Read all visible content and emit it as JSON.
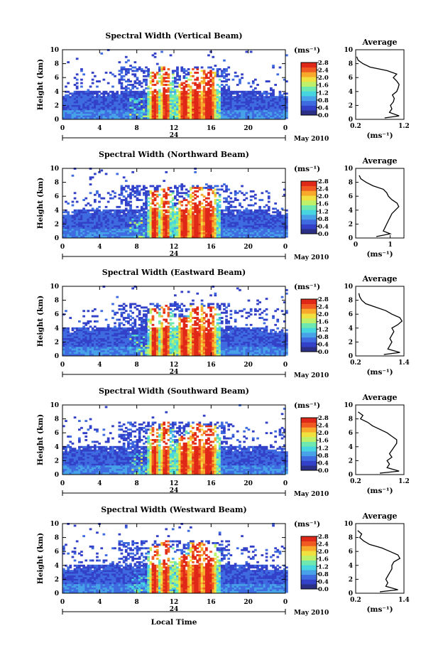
{
  "figure": {
    "xlabel": "Local Time",
    "colorbar_colors": [
      "#2b2f86",
      "#3341c9",
      "#3f6be0",
      "#47a2e8",
      "#47d6e0",
      "#6fe8b0",
      "#bff06a",
      "#f0e040",
      "#f8a82a",
      "#f05a22",
      "#e02818"
    ]
  },
  "chart_data": [
    {
      "type": "heatmap",
      "title": "Spectral Width (Vertical Beam)",
      "ylabel": "Height (km)",
      "xlim": [
        0,
        24
      ],
      "ylim": [
        0,
        10
      ],
      "xticks": [
        "0",
        "4",
        "8",
        "12",
        "16",
        "20",
        "0"
      ],
      "yticks": [
        "0",
        "2",
        "4",
        "6",
        "8",
        "10"
      ],
      "date_day": "24",
      "date_label": "May 2010",
      "colorbar": {
        "unit": "(ms⁻¹)",
        "ticks": [
          "0.0",
          "0.4",
          "0.8",
          "1.2",
          "1.6",
          "2.0",
          "2.4",
          "2.8"
        ],
        "range": [
          0,
          2.8
        ]
      },
      "profile": {
        "title": "Average",
        "xlabel": "(ms⁻¹)",
        "xticks": [
          "0.2",
          "1.2"
        ],
        "xlim": [
          0.2,
          1.2
        ],
        "yticks": [
          "0",
          "2",
          "4",
          "6",
          "8",
          "10"
        ],
        "points": [
          [
            0.8,
            0.2
          ],
          [
            1.1,
            0.5
          ],
          [
            0.9,
            1
          ],
          [
            0.95,
            1.5
          ],
          [
            0.92,
            2
          ],
          [
            0.98,
            2.5
          ],
          [
            1.0,
            3
          ],
          [
            0.96,
            3.5
          ],
          [
            1.05,
            4
          ],
          [
            1.08,
            4.5
          ],
          [
            1.1,
            5
          ],
          [
            1.05,
            5.5
          ],
          [
            0.98,
            6
          ],
          [
            1.05,
            6.5
          ],
          [
            0.85,
            7
          ],
          [
            0.5,
            7.5
          ],
          [
            0.35,
            8
          ],
          [
            0.25,
            8.5
          ],
          [
            0.22,
            9
          ]
        ]
      }
    },
    {
      "type": "heatmap",
      "title": "Spectral Width (Northward Beam)",
      "ylabel": "Height (km)",
      "xlim": [
        0,
        24
      ],
      "ylim": [
        0,
        10
      ],
      "xticks": [
        "0",
        "4",
        "8",
        "12",
        "16",
        "20",
        "0"
      ],
      "yticks": [
        "0",
        "2",
        "4",
        "6",
        "8",
        "10"
      ],
      "date_day": "24",
      "date_label": "May 2010",
      "colorbar": {
        "unit": "(ms⁻¹)",
        "ticks": [
          "0.0",
          "0.4",
          "0.8",
          "1.2",
          "1.6",
          "2.0",
          "2.4",
          "2.8"
        ],
        "range": [
          0,
          2.8
        ]
      },
      "profile": {
        "title": "Average",
        "xlabel": "(ms⁻¹)",
        "xticks": [
          "0",
          "1"
        ],
        "xlim": [
          0,
          1.4
        ],
        "yticks": [
          "0",
          "2",
          "4",
          "6",
          "8",
          "10"
        ],
        "points": [
          [
            0.6,
            0.2
          ],
          [
            1.0,
            0.6
          ],
          [
            0.8,
            1
          ],
          [
            0.85,
            1.5
          ],
          [
            0.9,
            2
          ],
          [
            0.95,
            2.5
          ],
          [
            1.0,
            3
          ],
          [
            1.05,
            3.5
          ],
          [
            1.15,
            4
          ],
          [
            1.25,
            4.5
          ],
          [
            1.2,
            5
          ],
          [
            1.05,
            5.5
          ],
          [
            0.95,
            6
          ],
          [
            0.9,
            6.5
          ],
          [
            0.8,
            7
          ],
          [
            0.5,
            7.5
          ],
          [
            0.3,
            8
          ],
          [
            0.15,
            8.5
          ],
          [
            0.1,
            9
          ]
        ]
      }
    },
    {
      "type": "heatmap",
      "title": "Spectral Width (Eastward Beam)",
      "ylabel": "Height (km)",
      "xlim": [
        0,
        24
      ],
      "ylim": [
        0,
        10
      ],
      "xticks": [
        "0",
        "4",
        "8",
        "12",
        "16",
        "20",
        "0"
      ],
      "yticks": [
        "0",
        "2",
        "4",
        "6",
        "8",
        "10"
      ],
      "date_day": "24",
      "date_label": "May 2010",
      "colorbar": {
        "unit": "(ms⁻¹)",
        "ticks": [
          "0.0",
          "0.4",
          "0.8",
          "1.2",
          "1.6",
          "2.0",
          "2.4",
          "2.8"
        ],
        "range": [
          0,
          2.8
        ]
      },
      "profile": {
        "title": "Average",
        "xlabel": "(ms⁻¹)",
        "xticks": [
          "0.2",
          "1.4"
        ],
        "xlim": [
          0.2,
          1.4
        ],
        "yticks": [
          "0",
          "2",
          "4",
          "6",
          "8",
          "10"
        ],
        "points": [
          [
            0.9,
            0.2
          ],
          [
            1.3,
            0.5
          ],
          [
            1.0,
            1
          ],
          [
            1.05,
            1.5
          ],
          [
            1.1,
            2
          ],
          [
            1.05,
            2.5
          ],
          [
            1.1,
            3
          ],
          [
            1.15,
            3.5
          ],
          [
            1.1,
            4
          ],
          [
            1.25,
            4.5
          ],
          [
            1.35,
            5
          ],
          [
            1.3,
            5.5
          ],
          [
            1.1,
            6
          ],
          [
            0.95,
            6.5
          ],
          [
            0.7,
            7
          ],
          [
            0.45,
            7.5
          ],
          [
            0.35,
            8
          ],
          [
            0.3,
            8.5
          ],
          [
            0.28,
            9
          ]
        ]
      }
    },
    {
      "type": "heatmap",
      "title": "Spectral Width (Southward Beam)",
      "ylabel": "Height (km)",
      "xlim": [
        0,
        24
      ],
      "ylim": [
        0,
        10
      ],
      "xticks": [
        "0",
        "4",
        "8",
        "12",
        "16",
        "20",
        "0"
      ],
      "yticks": [
        "0",
        "2",
        "4",
        "6",
        "8",
        "10"
      ],
      "date_day": "24",
      "date_label": "May 2010",
      "colorbar": {
        "unit": "(ms⁻¹)",
        "ticks": [
          "0.0",
          "0.4",
          "0.8",
          "1.2",
          "1.6",
          "2.0",
          "2.4",
          "2.8"
        ],
        "range": [
          0,
          2.8
        ]
      },
      "profile": {
        "title": "Average",
        "xlabel": "(ms⁻¹)",
        "xticks": [
          "0.2",
          "1.2"
        ],
        "xlim": [
          0.2,
          1.2
        ],
        "yticks": [
          "0",
          "2",
          "4",
          "6",
          "8",
          "10"
        ],
        "points": [
          [
            0.7,
            0.2
          ],
          [
            1.1,
            0.5
          ],
          [
            0.85,
            1
          ],
          [
            0.9,
            1.5
          ],
          [
            0.85,
            2
          ],
          [
            0.95,
            2.5
          ],
          [
            0.9,
            3
          ],
          [
            0.95,
            3.5
          ],
          [
            1.0,
            4
          ],
          [
            1.05,
            4.5
          ],
          [
            1.05,
            5
          ],
          [
            0.95,
            5.5
          ],
          [
            0.85,
            6
          ],
          [
            0.7,
            6.5
          ],
          [
            0.55,
            7
          ],
          [
            0.45,
            7.5
          ],
          [
            0.3,
            8
          ],
          [
            0.35,
            8.5
          ],
          [
            0.25,
            9
          ]
        ]
      }
    },
    {
      "type": "heatmap",
      "title": "Spectral Width (Westward Beam)",
      "ylabel": "Height (km)",
      "xlim": [
        0,
        24
      ],
      "ylim": [
        0,
        10
      ],
      "xticks": [
        "0",
        "4",
        "8",
        "12",
        "16",
        "20",
        "0"
      ],
      "yticks": [
        "0",
        "2",
        "4",
        "6",
        "8",
        "10"
      ],
      "date_day": "24",
      "date_label": "May 2010",
      "colorbar": {
        "unit": "(ms⁻¹)",
        "ticks": [
          "0.0",
          "0.4",
          "0.8",
          "1.2",
          "1.6",
          "2.0",
          "2.4",
          "2.8"
        ],
        "range": [
          0,
          2.8
        ]
      },
      "profile": {
        "title": "Average",
        "xlabel": "(ms⁻¹)",
        "xticks": [
          "0.2",
          "1.4"
        ],
        "xlim": [
          0.2,
          1.4
        ],
        "yticks": [
          "0",
          "2",
          "4",
          "6",
          "8",
          "10"
        ],
        "points": [
          [
            0.8,
            0.2
          ],
          [
            1.25,
            0.5
          ],
          [
            0.95,
            1
          ],
          [
            1.0,
            1.5
          ],
          [
            0.95,
            2
          ],
          [
            1.0,
            2.5
          ],
          [
            1.05,
            3
          ],
          [
            1.1,
            3.5
          ],
          [
            1.1,
            4
          ],
          [
            1.15,
            4.5
          ],
          [
            1.3,
            5
          ],
          [
            1.25,
            5.5
          ],
          [
            1.05,
            6
          ],
          [
            0.85,
            6.5
          ],
          [
            0.55,
            7
          ],
          [
            0.4,
            7.5
          ],
          [
            0.3,
            8
          ],
          [
            0.35,
            8.5
          ],
          [
            0.25,
            9
          ]
        ]
      }
    }
  ]
}
